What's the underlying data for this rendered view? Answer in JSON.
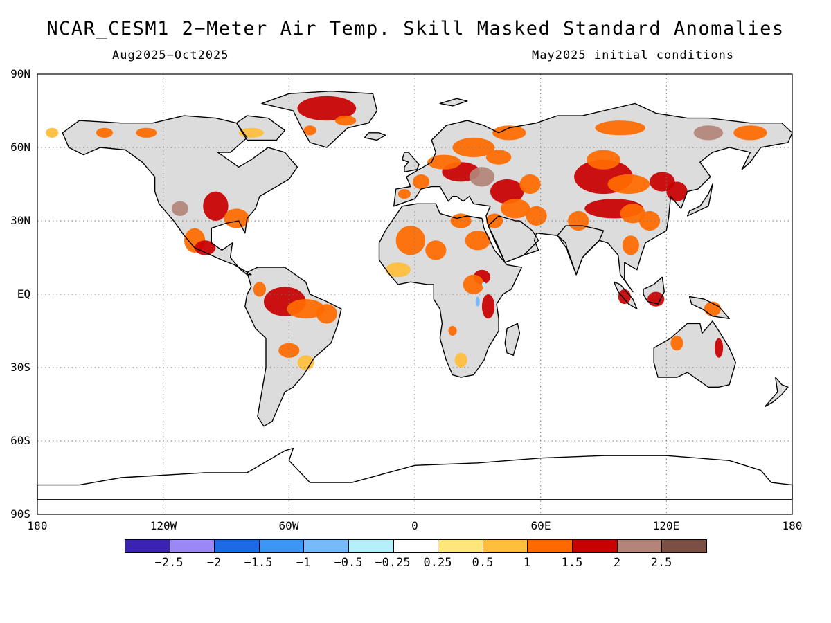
{
  "title": "NCAR_CESM1 2−Meter Air Temp. Skill Masked Standard Anomalies",
  "subtitle_left": "Aug2025−Oct2025",
  "subtitle_right": "May2025 initial conditions",
  "lat_labels": [
    "90N",
    "60N",
    "30N",
    "EQ",
    "30S",
    "60S",
    "90S"
  ],
  "lon_labels": [
    "180",
    "120W",
    "60W",
    "0",
    "60E",
    "120E",
    "180"
  ],
  "colors": {
    "land_gray": "#dcdcdc",
    "ocean": "#ffffff",
    "coast": "#000000"
  },
  "colorbar": {
    "colors": [
      "#3c22b0",
      "#9b87f5",
      "#1c6ae6",
      "#3c96f5",
      "#78b9fa",
      "#b4f0fa",
      "#ffffff",
      "#ffe678",
      "#ffbe3c",
      "#ff6a00",
      "#c80000",
      "#b38478",
      "#7a4f44"
    ],
    "labels": [
      "−2.5",
      "−2",
      "−1.5",
      "−1",
      "−0.5",
      "−0.25",
      "0.25",
      "0.5",
      "1",
      "1.5",
      "2",
      "2.5"
    ]
  }
}
